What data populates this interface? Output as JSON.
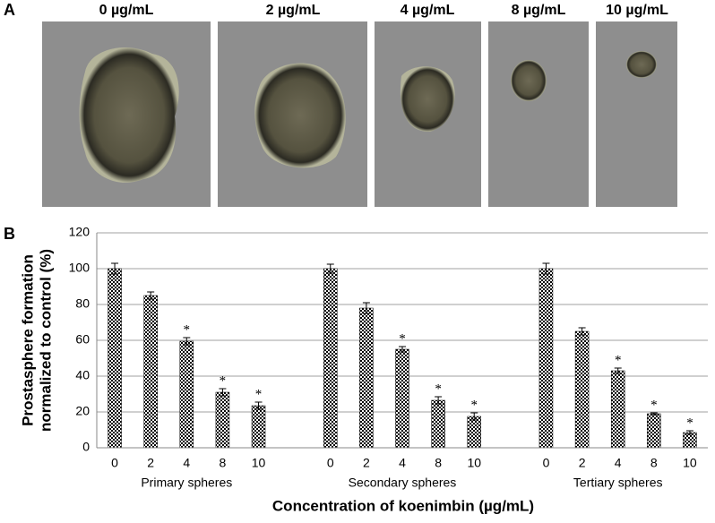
{
  "panel_labels": [
    "A",
    "B"
  ],
  "images": {
    "labels": [
      "0 µg/mL",
      "2 µg/mL",
      "4 µg/mL",
      "8 µg/mL",
      "10 µg/mL"
    ]
  },
  "chart_data": {
    "type": "bar",
    "y_label": [
      "Prostasphere formation",
      "normalized to control (%)"
    ],
    "x_label": "Concentration of koenimbin (µg/mL)",
    "color": "#000000",
    "ylim": [
      0,
      120
    ],
    "yticks": [
      0,
      20,
      40,
      60,
      80,
      100,
      120
    ],
    "grid": true,
    "groups": [
      {
        "name": "Primary spheres",
        "categories": [
          "0",
          "2",
          "4",
          "8",
          "10"
        ],
        "values": [
          100,
          85,
          59.5,
          31,
          23.5
        ],
        "errors": [
          3,
          2,
          2,
          2,
          2
        ],
        "annotations": [
          null,
          null,
          "*",
          "*",
          "*"
        ]
      },
      {
        "name": "Secondary spheres",
        "categories": [
          "0",
          "2",
          "4",
          "8",
          "10"
        ],
        "values": [
          100,
          78,
          55,
          26.5,
          17.5
        ],
        "errors": [
          2.5,
          3,
          1.5,
          2,
          2
        ],
        "annotations": [
          null,
          null,
          "*",
          "*",
          "*"
        ]
      },
      {
        "name": "Tertiary spheres",
        "categories": [
          "0",
          "2",
          "4",
          "8",
          "10"
        ],
        "values": [
          100,
          65,
          43,
          19,
          8.5
        ],
        "errors": [
          3,
          2,
          1.5,
          0.5,
          1
        ],
        "annotations": [
          null,
          null,
          "*",
          "*",
          "*"
        ]
      }
    ]
  }
}
